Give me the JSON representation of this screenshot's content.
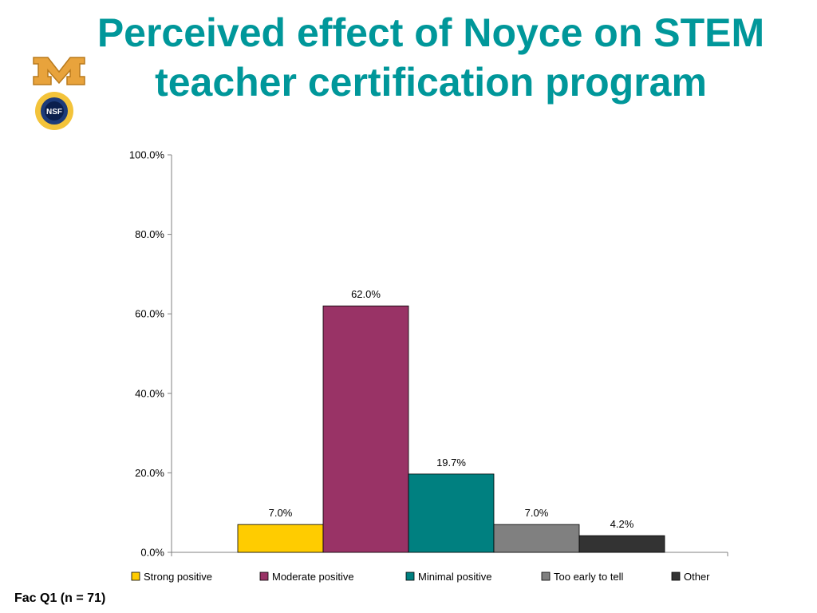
{
  "title": "Perceived effect of Noyce on STEM teacher certification program",
  "footer": "Fac Q1 (n = 71)",
  "logos": {
    "m": "minnesota-m-logo",
    "nsf": "nsf-seal-logo",
    "nsf_text": "NSF"
  },
  "chart_data": {
    "type": "bar",
    "title": "Perceived effect of Noyce on STEM teacher certification program",
    "xlabel": "",
    "ylabel": "",
    "ylim": [
      0,
      100
    ],
    "ytick_step": 20,
    "y_format": "percent-1-decimal",
    "grid": false,
    "legend_position": "bottom",
    "series": [
      {
        "name": "Strong positive",
        "value": 7.0,
        "label": "7.0%",
        "color": "#ffcc00"
      },
      {
        "name": "Moderate positive",
        "value": 62.0,
        "label": "62.0%",
        "color": "#993366"
      },
      {
        "name": "Minimal positive",
        "value": 19.7,
        "label": "19.7%",
        "color": "#008080"
      },
      {
        "name": "Too early to tell",
        "value": 7.0,
        "label": "7.0%",
        "color": "#808080"
      },
      {
        "name": "Other",
        "value": 4.2,
        "label": "4.2%",
        "color": "#333333"
      }
    ]
  }
}
